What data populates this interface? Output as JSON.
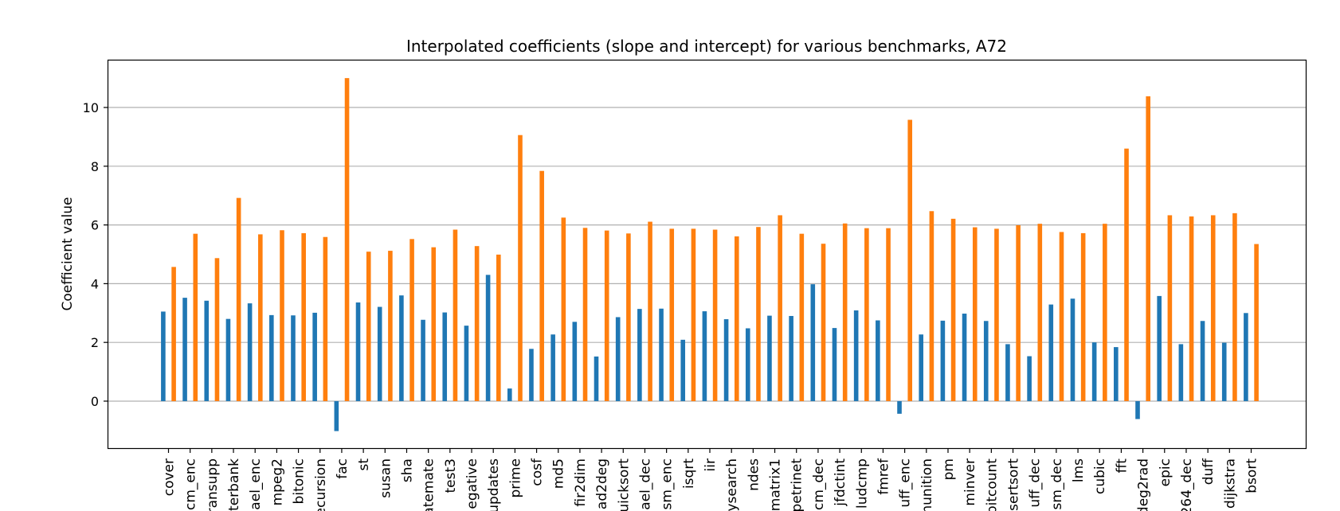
{
  "chart_data": {
    "type": "bar",
    "title": "Interpolated coefficients (slope and intercept) for various benchmarks, A72",
    "xlabel": "",
    "ylabel": "Coefficient value",
    "ylim": [
      -1.6,
      11.6
    ],
    "yticks": [
      0,
      2,
      4,
      6,
      8,
      10
    ],
    "grid": "y",
    "categories": [
      "cover",
      "cm_enc",
      "ransupp",
      "terbank",
      "ael_enc",
      "mpeg2",
      "bitonic",
      "ecursion",
      "fac",
      "st",
      "susan",
      "sha",
      "atemate",
      "test3",
      "egative",
      "updates",
      "prime",
      "cosf",
      "md5",
      "fir2dim",
      "ad2deg",
      "uicksort",
      "ael_dec",
      "sm_enc",
      "isqrt",
      "iir",
      "ysearch",
      "ndes",
      "matrix1",
      "petrinet",
      "cm_dec",
      "jfdctint",
      "ludcmp",
      "fmref",
      "uff_enc",
      "munition",
      "pm",
      "minver",
      "bitcount",
      "sertsort",
      "uff_dec",
      "sm_dec",
      "lms",
      "cubic",
      "fft",
      "deg2rad",
      "epic",
      "264_dec",
      "duff",
      "dijkstra",
      "bsort"
    ],
    "series": [
      {
        "values": [
          3.05,
          3.52,
          3.42,
          2.8,
          3.33,
          2.93,
          2.92,
          3.01,
          -1.02,
          3.36,
          3.21,
          3.6,
          2.77,
          3.02,
          2.57,
          4.3,
          0.43,
          1.78,
          2.27,
          2.7,
          1.52,
          2.86,
          3.14,
          3.15,
          2.09,
          3.06,
          2.79,
          2.48,
          2.91,
          2.9,
          3.98,
          2.49,
          3.09,
          2.75,
          -0.43,
          2.27,
          2.74,
          2.98,
          2.73,
          1.94,
          1.53,
          3.29,
          3.49,
          2.0,
          1.84,
          -0.61,
          3.58,
          1.94,
          2.73,
          1.99,
          3.0
        ]
      },
      {
        "values": [
          4.57,
          5.7,
          4.87,
          6.92,
          5.68,
          5.82,
          5.72,
          5.59,
          11.0,
          5.09,
          5.12,
          5.52,
          5.24,
          5.84,
          5.28,
          4.99,
          9.06,
          7.84,
          6.25,
          5.9,
          5.81,
          5.71,
          6.11,
          5.87,
          5.87,
          5.84,
          5.61,
          5.93,
          6.33,
          5.7,
          5.36,
          6.05,
          5.89,
          5.89,
          9.58,
          6.47,
          6.21,
          5.92,
          5.87,
          5.99,
          6.04,
          5.76,
          5.72,
          6.04,
          8.6,
          10.38,
          6.33,
          6.29,
          6.33,
          6.4,
          5.35
        ]
      }
    ]
  },
  "colors": {
    "series": [
      "#1f77b4",
      "#ff7f0e"
    ],
    "grid": "#b0b0b0",
    "axes": "#000000"
  }
}
